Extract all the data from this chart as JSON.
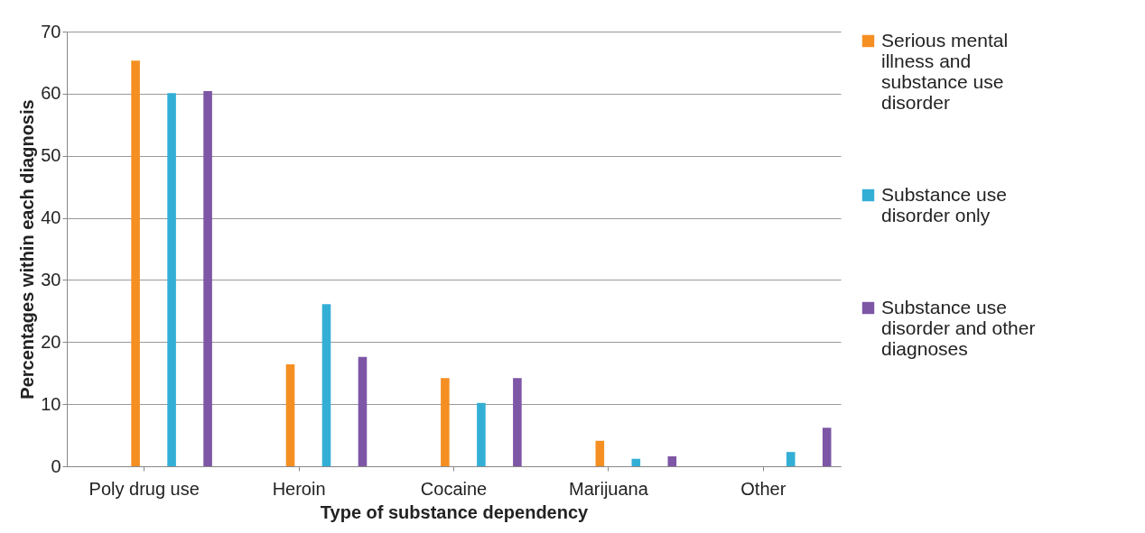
{
  "chart_data": {
    "type": "bar",
    "xlabel": "Type of substance dependency",
    "ylabel": "Percentages   within each diagnosis",
    "categories": [
      "Poly drug use",
      "Heroin",
      "Cocaine",
      "Marijuana",
      "Other"
    ],
    "series": [
      {
        "name": "Serious mental illness and substance use disorder",
        "color": "#f58f22",
        "values": [
          65.3,
          16.4,
          14.2,
          4.1,
          0
        ]
      },
      {
        "name": "Substance use disorder only",
        "color": "#33afd6",
        "values": [
          60.1,
          26.1,
          10.2,
          1.2,
          2.3
        ]
      },
      {
        "name": "Substance use disorder and other diagnoses",
        "color": "#7d56a6",
        "values": [
          60.4,
          17.6,
          14.2,
          1.6,
          6.2
        ]
      }
    ],
    "ylim": [
      0,
      70
    ],
    "yticks": [
      0,
      10,
      20,
      30,
      40,
      50,
      60,
      70
    ],
    "grid": "y",
    "legend": "right"
  }
}
